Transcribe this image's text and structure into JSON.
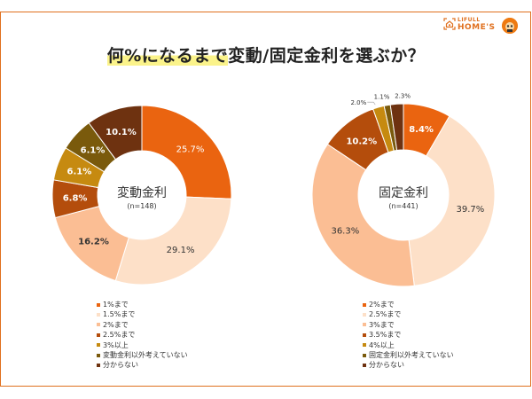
{
  "title_highlight": "何%になるまで",
  "title_rest": "変動/固定金利を選ぶか？",
  "logo": {
    "small": "LIFULL",
    "big": "HOME'S"
  },
  "chart_data": [
    {
      "type": "pie",
      "donut": true,
      "title": "変動金利",
      "subtitle": "(n=148)",
      "categories": [
        "1%まで",
        "1.5%まで",
        "2%まで",
        "2.5%まで",
        "3%以上",
        "変動金利以外考えていない",
        "分からない"
      ],
      "values": [
        25.7,
        29.1,
        16.2,
        6.8,
        6.1,
        6.1,
        10.1
      ],
      "labels": [
        "25.7%",
        "29.1%",
        "16.2%",
        "6.8%",
        "6.1%",
        "6.1%",
        "10.1%"
      ],
      "colors": [
        "#EA6410",
        "#FDE0C8",
        "#FBBE94",
        "#B44D0C",
        "#C68A10",
        "#7A5A0C",
        "#6E3210"
      ],
      "label_colors": [
        "#ffffff",
        "#333333",
        "#333333",
        "#ffffff",
        "#ffffff",
        "#ffffff",
        "#ffffff"
      ],
      "legend_position": "bottom"
    },
    {
      "type": "pie",
      "donut": true,
      "title": "固定金利",
      "subtitle": "(n=441)",
      "categories": [
        "2%まで",
        "2.5%まで",
        "3%まで",
        "3.5%まで",
        "4%以上",
        "固定金利以外考えていない",
        "分からない"
      ],
      "values": [
        8.4,
        39.7,
        36.3,
        10.2,
        2.0,
        1.1,
        2.3
      ],
      "labels": [
        "8.4%",
        "39.7%",
        "36.3%",
        "10.2%",
        "2.0%",
        "1.1%",
        "2.3%"
      ],
      "colors": [
        "#EA6410",
        "#FDE0C8",
        "#FBBE94",
        "#B44D0C",
        "#C68A10",
        "#7A5A0C",
        "#6E3210"
      ],
      "label_colors": [
        "#ffffff",
        "#333333",
        "#333333",
        "#ffffff",
        "#333333",
        "#333333",
        "#333333"
      ],
      "legend_position": "bottom"
    }
  ]
}
